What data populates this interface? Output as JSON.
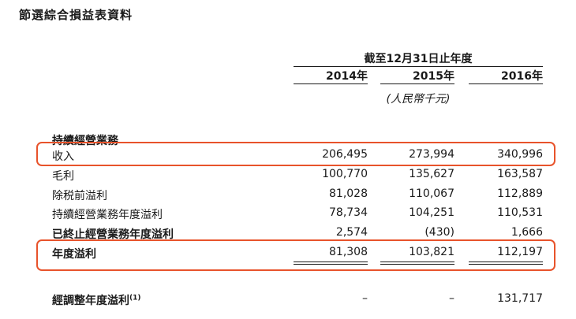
{
  "title": "節選綜合損益表資料",
  "header": {
    "period": "截至12月31日止年度",
    "years": [
      "2014年",
      "2015年",
      "2016年"
    ],
    "unit": "(人民幣千元)"
  },
  "section_label": "持續經營業務",
  "rows": [
    {
      "label": "收入",
      "values": [
        "206,495",
        "273,994",
        "340,996"
      ]
    },
    {
      "label": "毛利",
      "values": [
        "100,770",
        "135,627",
        "163,587"
      ]
    },
    {
      "label": "除税前溢利",
      "values": [
        "81,028",
        "110,067",
        "112,889"
      ]
    },
    {
      "label": "持續經營業務年度溢利",
      "values": [
        "78,734",
        "104,251",
        "110,531"
      ]
    },
    {
      "label": "已終止經營業務年度溢利",
      "values": [
        "2,574",
        "(430)",
        "1,666"
      ]
    },
    {
      "label": "年度溢利",
      "values": [
        "81,308",
        "103,821",
        "112,197"
      ]
    }
  ],
  "adjusted": {
    "label": "經調整年度溢利",
    "footnote": "(1)",
    "values": [
      "–",
      "–",
      "131,717"
    ]
  },
  "colors": {
    "highlight": "#e8532b",
    "text": "#1a1a1a"
  }
}
